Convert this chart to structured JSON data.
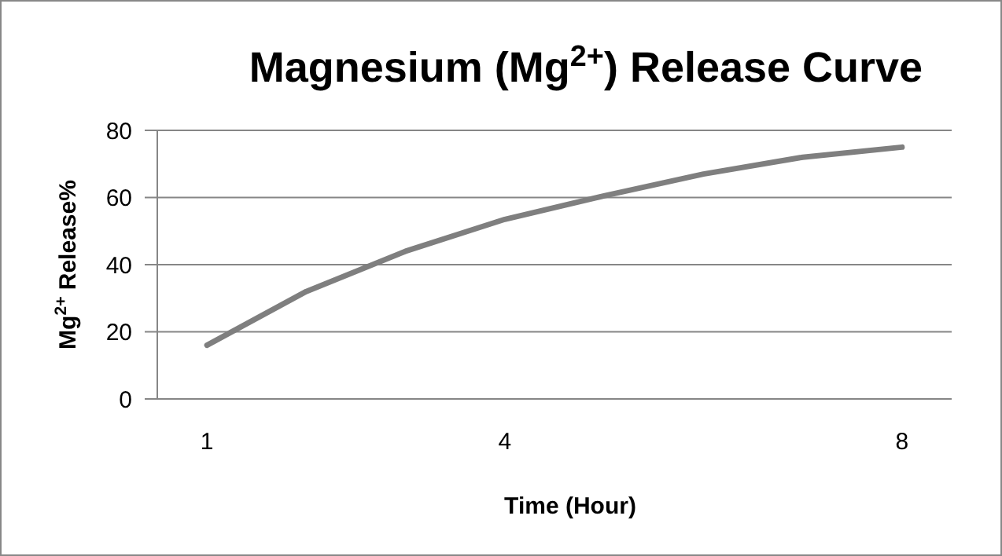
{
  "chart_data": {
    "type": "line",
    "title": "Magnesium (Mg$^{2+}$) Release Curve",
    "xlabel": "Time (Hour)",
    "ylabel": "Mg$^{2+}$ Release%",
    "categories": [
      "1",
      null,
      null,
      "4",
      null,
      null,
      null,
      "8"
    ],
    "series": [
      {
        "color": "#7f7f7f",
        "values": [
          16,
          32,
          44,
          53.5,
          60.5,
          67,
          72,
          75
        ]
      }
    ],
    "ylim": [
      0,
      80
    ],
    "yticks": [
      0,
      20,
      40,
      60,
      80
    ],
    "grid": "y",
    "marker": "none",
    "line_style": "solid"
  }
}
